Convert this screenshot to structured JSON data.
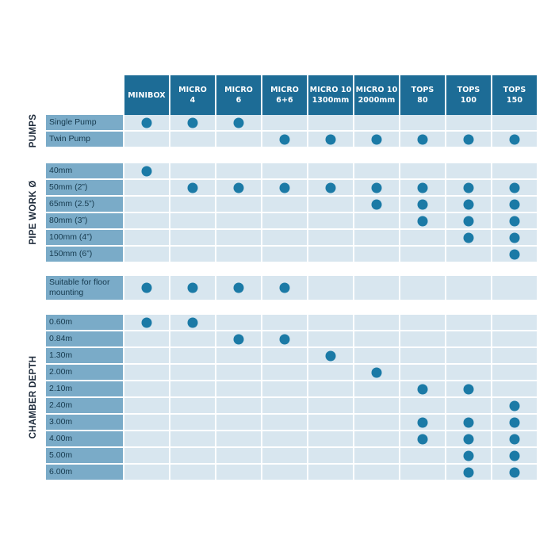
{
  "columns": [
    {
      "line1": "MINIBOX",
      "line2": ""
    },
    {
      "line1": "MICRO",
      "line2": "4"
    },
    {
      "line1": "MICRO",
      "line2": "6"
    },
    {
      "line1": "MICRO",
      "line2": "6+6"
    },
    {
      "line1": "MICRO 10",
      "line2": "1300mm"
    },
    {
      "line1": "MICRO 10",
      "line2": "2000mm"
    },
    {
      "line1": "TOPS",
      "line2": "80"
    },
    {
      "line1": "TOPS",
      "line2": "100"
    },
    {
      "line1": "TOPS",
      "line2": "150"
    }
  ],
  "sections": [
    {
      "title": "PUMPS",
      "rows": [
        {
          "label": "Single Pump",
          "marks": [
            1,
            1,
            1,
            0,
            0,
            0,
            0,
            0,
            0
          ]
        },
        {
          "label": "Twin Pump",
          "marks": [
            0,
            0,
            0,
            1,
            1,
            1,
            1,
            1,
            1
          ]
        }
      ]
    },
    {
      "title": "PIPE WORK Ø",
      "rows": [
        {
          "label": "40mm",
          "marks": [
            1,
            0,
            0,
            0,
            0,
            0,
            0,
            0,
            0
          ]
        },
        {
          "label": "50mm (2”)",
          "marks": [
            0,
            1,
            1,
            1,
            1,
            1,
            1,
            1,
            1
          ]
        },
        {
          "label": "65mm (2.5”)",
          "marks": [
            0,
            0,
            0,
            0,
            0,
            1,
            1,
            1,
            1
          ]
        },
        {
          "label": "80mm (3”)",
          "marks": [
            0,
            0,
            0,
            0,
            0,
            0,
            1,
            1,
            1
          ]
        },
        {
          "label": "100mm (4”)",
          "marks": [
            0,
            0,
            0,
            0,
            0,
            0,
            0,
            1,
            1
          ]
        },
        {
          "label": "150mm (6”)",
          "marks": [
            0,
            0,
            0,
            0,
            0,
            0,
            0,
            0,
            1
          ]
        }
      ]
    },
    {
      "title": "",
      "rows": [
        {
          "label": "Suitable for floor mounting",
          "marks": [
            1,
            1,
            1,
            1,
            0,
            0,
            0,
            0,
            0
          ]
        }
      ]
    },
    {
      "title": "CHAMBER DEPTH",
      "rows": [
        {
          "label": "0.60m",
          "marks": [
            1,
            1,
            0,
            0,
            0,
            0,
            0,
            0,
            0
          ]
        },
        {
          "label": "0.84m",
          "marks": [
            0,
            0,
            1,
            1,
            0,
            0,
            0,
            0,
            0
          ]
        },
        {
          "label": "1.30m",
          "marks": [
            0,
            0,
            0,
            0,
            1,
            0,
            0,
            0,
            0
          ]
        },
        {
          "label": "2.00m",
          "marks": [
            0,
            0,
            0,
            0,
            0,
            1,
            0,
            0,
            0
          ]
        },
        {
          "label": "2.10m",
          "marks": [
            0,
            0,
            0,
            0,
            0,
            0,
            1,
            1,
            0
          ]
        },
        {
          "label": "2.40m",
          "marks": [
            0,
            0,
            0,
            0,
            0,
            0,
            0,
            0,
            1
          ]
        },
        {
          "label": "3.00m",
          "marks": [
            0,
            0,
            0,
            0,
            0,
            0,
            1,
            1,
            1
          ]
        },
        {
          "label": "4.00m",
          "marks": [
            0,
            0,
            0,
            0,
            0,
            0,
            1,
            1,
            1
          ]
        },
        {
          "label": "5.00m",
          "marks": [
            0,
            0,
            0,
            0,
            0,
            0,
            0,
            1,
            1
          ]
        },
        {
          "label": "6.00m",
          "marks": [
            0,
            0,
            0,
            0,
            0,
            0,
            0,
            1,
            1
          ]
        }
      ]
    }
  ],
  "colors": {
    "header": "#1d6c96",
    "label_cell": "#7aabc8",
    "data_cell": "#d8e6ef",
    "dot": "#1b7aa6"
  }
}
